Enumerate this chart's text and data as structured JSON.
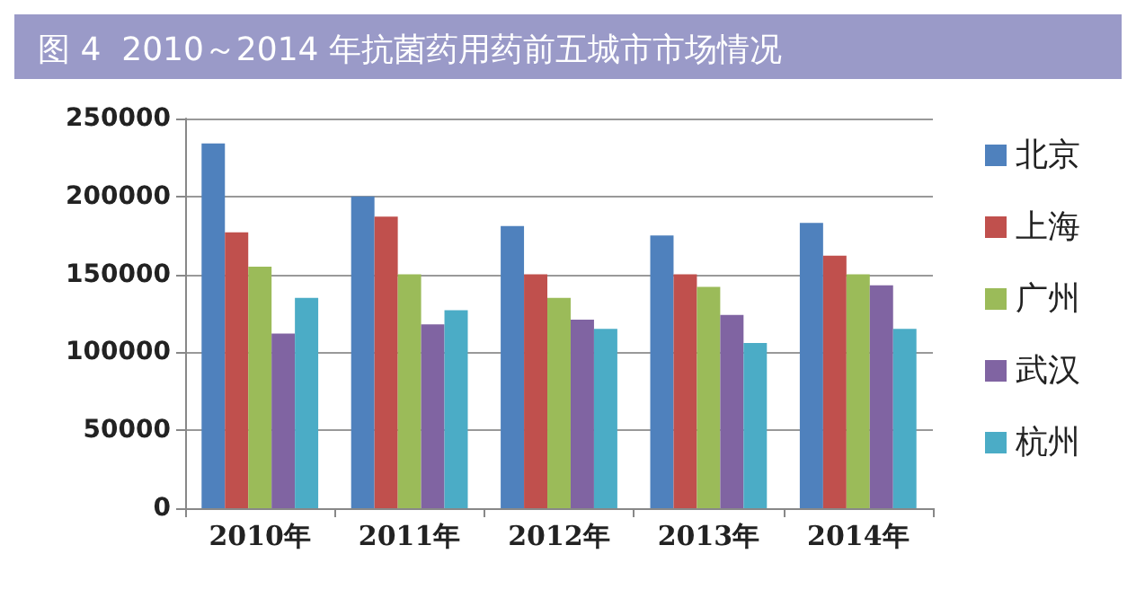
{
  "chart_data": {
    "type": "bar",
    "title": "图 4  2010～2014 年抗菌药用药前五城市市场情况",
    "categories": [
      "2010年",
      "2011年",
      "2012年",
      "2013年",
      "2014年"
    ],
    "series": [
      {
        "name": "北京",
        "color": "#4f81bd",
        "values": [
          234000,
          200000,
          181000,
          175000,
          183000
        ]
      },
      {
        "name": "上海",
        "color": "#c0504d",
        "values": [
          177000,
          187000,
          150000,
          150000,
          162000
        ]
      },
      {
        "name": "广州",
        "color": "#9bbb59",
        "values": [
          155000,
          150000,
          135000,
          142000,
          150000
        ]
      },
      {
        "name": "武汉",
        "color": "#8064a2",
        "values": [
          112000,
          118000,
          121000,
          124000,
          143000
        ]
      },
      {
        "name": "杭州",
        "color": "#4bacc6",
        "values": [
          135000,
          127000,
          115000,
          106000,
          115000
        ]
      }
    ],
    "ylim": [
      0,
      250000
    ],
    "yticks": [
      0,
      50000,
      100000,
      150000,
      200000,
      250000
    ],
    "grid": "y",
    "legend": "right"
  }
}
